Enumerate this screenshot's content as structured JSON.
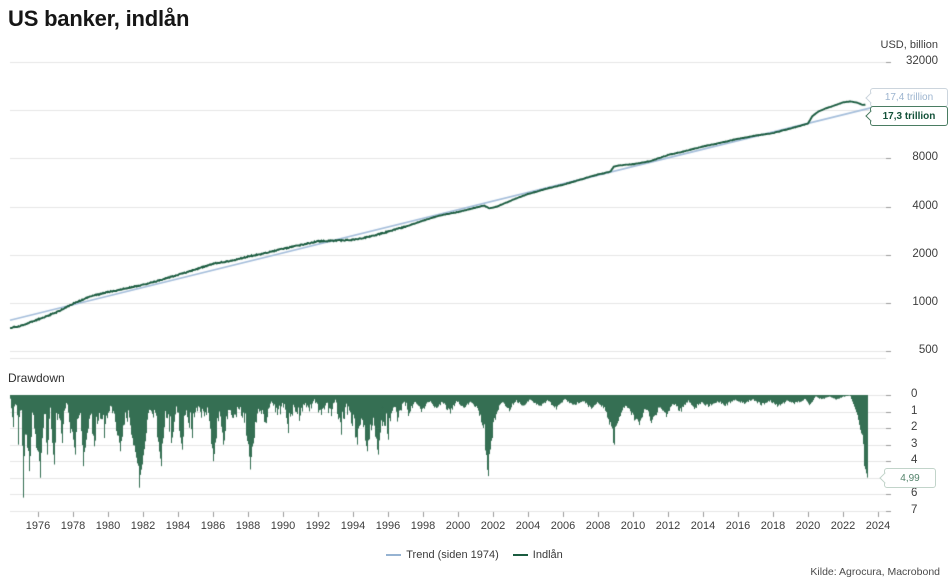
{
  "title": "US banker, indlån",
  "header": {
    "unit_label": "USD, billion"
  },
  "drawdown_label": "Drawdown",
  "source": "Kilde: Agrocura, Macrobond",
  "legend": [
    {
      "label": "Trend (siden 1974)",
      "color": "#96b3d2"
    },
    {
      "label": "Indlån",
      "color": "#1b5c40"
    }
  ],
  "colors": {
    "deposits_line": "#1b5c40",
    "trend_line": "#a5bedb",
    "drawdown_fill": "#356f53",
    "grid": "#e6e6e6",
    "tick": "#9b9b9b",
    "axis_text": "#3d3d3d"
  },
  "callouts": {
    "trend": {
      "text": "17,4 trillion",
      "text_color": "#9cb4cf",
      "border_color": "#ccd5dd"
    },
    "deposits": {
      "text": "17,3 trillion",
      "text_color": "#14523a",
      "border_color": "#4a7c62"
    },
    "drawdown": {
      "text": "4,99",
      "text_color": "#53836b",
      "border_color": "#c2d4ca"
    }
  },
  "chart_data": [
    {
      "type": "line",
      "title": "US banker, indlån",
      "ylabel": "USD, billion",
      "y_scale": "log",
      "ylim": [
        455,
        32000
      ],
      "yticks": [
        32000,
        8000,
        4000,
        2000,
        1000,
        500
      ],
      "ygrid": [
        32000,
        16000,
        8000,
        4000,
        2000,
        1000,
        500
      ],
      "xticks": [
        1976,
        1978,
        1980,
        1982,
        1984,
        1986,
        1988,
        1990,
        1992,
        1994,
        1996,
        1998,
        2000,
        2002,
        2004,
        2006,
        2008,
        2010,
        2012,
        2014,
        2016,
        2018,
        2020,
        2022,
        2024
      ],
      "legend_position": "bottom",
      "series": [
        {
          "name": "Indlån",
          "last_value_label": "17,3 trillion",
          "points": [
            [
              1974.4,
              700
            ],
            [
              1975,
              720
            ],
            [
              1976,
              790
            ],
            [
              1977,
              870
            ],
            [
              1978,
              990
            ],
            [
              1979,
              1100
            ],
            [
              1980,
              1170
            ],
            [
              1981,
              1230
            ],
            [
              1982,
              1300
            ],
            [
              1983,
              1390
            ],
            [
              1984,
              1500
            ],
            [
              1985,
              1620
            ],
            [
              1986,
              1760
            ],
            [
              1987,
              1830
            ],
            [
              1988,
              1950
            ],
            [
              1989,
              2050
            ],
            [
              1990,
              2180
            ],
            [
              1991,
              2300
            ],
            [
              1992,
              2430
            ],
            [
              1993,
              2450
            ],
            [
              1994,
              2480
            ],
            [
              1995,
              2600
            ],
            [
              1996,
              2790
            ],
            [
              1997,
              3000
            ],
            [
              1998,
              3270
            ],
            [
              1999,
              3530
            ],
            [
              2000,
              3700
            ],
            [
              2001,
              3940
            ],
            [
              2001.5,
              4060
            ],
            [
              2001.8,
              3890
            ],
            [
              2002.2,
              3990
            ],
            [
              2003,
              4350
            ],
            [
              2004,
              4800
            ],
            [
              2005,
              5150
            ],
            [
              2006,
              5480
            ],
            [
              2007,
              5900
            ],
            [
              2008,
              6350
            ],
            [
              2008.7,
              6600
            ],
            [
              2008.9,
              7100
            ],
            [
              2009.3,
              7250
            ],
            [
              2010,
              7350
            ],
            [
              2011,
              7700
            ],
            [
              2012,
              8400
            ],
            [
              2013,
              8900
            ],
            [
              2014,
              9500
            ],
            [
              2015,
              10000
            ],
            [
              2016,
              10600
            ],
            [
              2017,
              11100
            ],
            [
              2018,
              11500
            ],
            [
              2019,
              12300
            ],
            [
              2020,
              13200
            ],
            [
              2020.25,
              14700
            ],
            [
              2020.6,
              15700
            ],
            [
              2021,
              16400
            ],
            [
              2021.5,
              17100
            ],
            [
              2022,
              17900
            ],
            [
              2022.4,
              18150
            ],
            [
              2022.8,
              17850
            ],
            [
              2023,
              17500
            ],
            [
              2023.15,
              17250
            ],
            [
              2023.3,
              17300
            ]
          ]
        },
        {
          "name": "Trend (siden 1974)",
          "last_value_label": "17,4 trillion",
          "points": [
            [
              1974.4,
              780
            ],
            [
              2024.4,
              17400
            ]
          ]
        }
      ]
    },
    {
      "type": "area",
      "title": "Drawdown",
      "ylim": [
        0,
        7
      ],
      "inverted": true,
      "yticks": [
        0,
        1,
        2,
        3,
        4,
        5,
        6,
        7
      ],
      "series": [
        {
          "name": "Drawdown",
          "last_value_label": "4,99",
          "points": [
            [
              1974.4,
              0.4
            ],
            [
              1974.55,
              2.1
            ],
            [
              1974.7,
              0.8
            ],
            [
              1974.85,
              3.0
            ],
            [
              1975.0,
              1.2
            ],
            [
              1975.15,
              6.2
            ],
            [
              1975.3,
              2.4
            ],
            [
              1975.5,
              4.6
            ],
            [
              1975.7,
              1.4
            ],
            [
              1975.9,
              3.2
            ],
            [
              1976.1,
              5.0
            ],
            [
              1976.3,
              1.8
            ],
            [
              1976.5,
              3.6
            ],
            [
              1976.7,
              1.2
            ],
            [
              1976.9,
              4.2
            ],
            [
              1977.1,
              1.6
            ],
            [
              1977.35,
              2.9
            ],
            [
              1977.6,
              0.9
            ],
            [
              1977.85,
              2.3
            ],
            [
              1978.1,
              3.6
            ],
            [
              1978.35,
              1.1
            ],
            [
              1978.6,
              4.3
            ],
            [
              1978.9,
              1.8
            ],
            [
              1979.2,
              3.1
            ],
            [
              1979.5,
              1.1
            ],
            [
              1979.8,
              2.6
            ],
            [
              1980.1,
              0.9
            ],
            [
              1980.4,
              2.0
            ],
            [
              1980.7,
              3.4
            ],
            [
              1981.0,
              1.3
            ],
            [
              1981.3,
              2.4
            ],
            [
              1981.8,
              5.6
            ],
            [
              1982.1,
              2.8
            ],
            [
              1982.4,
              1.1
            ],
            [
              1982.7,
              2.1
            ],
            [
              1983.0,
              4.3
            ],
            [
              1983.3,
              1.5
            ],
            [
              1983.6,
              2.9
            ],
            [
              1983.9,
              1.0
            ],
            [
              1984.2,
              3.3
            ],
            [
              1984.5,
              1.7
            ],
            [
              1984.8,
              2.6
            ],
            [
              1985.1,
              0.9
            ],
            [
              1985.4,
              1.9
            ],
            [
              1985.7,
              1.1
            ],
            [
              1986.0,
              4.0
            ],
            [
              1986.3,
              1.9
            ],
            [
              1986.6,
              3.0
            ],
            [
              1986.9,
              1.2
            ],
            [
              1987.2,
              2.2
            ],
            [
              1987.5,
              1.0
            ],
            [
              1987.8,
              2.0
            ],
            [
              1988.1,
              4.5
            ],
            [
              1988.4,
              2.0
            ],
            [
              1988.7,
              1.1
            ],
            [
              1989.0,
              2.1
            ],
            [
              1989.35,
              0.7
            ],
            [
              1989.7,
              1.5
            ],
            [
              1990.0,
              0.8
            ],
            [
              1990.3,
              2.3
            ],
            [
              1990.6,
              1.0
            ],
            [
              1990.9,
              1.7
            ],
            [
              1991.2,
              0.6
            ],
            [
              1991.5,
              1.3
            ],
            [
              1991.8,
              0.5
            ],
            [
              1992.1,
              1.9
            ],
            [
              1992.4,
              0.8
            ],
            [
              1992.7,
              1.4
            ],
            [
              1993.0,
              0.6
            ],
            [
              1993.3,
              2.4
            ],
            [
              1993.6,
              1.1
            ],
            [
              1993.9,
              2.1
            ],
            [
              1994.2,
              3.0
            ],
            [
              1994.5,
              1.7
            ],
            [
              1994.8,
              3.4
            ],
            [
              1995.1,
              1.9
            ],
            [
              1995.4,
              3.6
            ],
            [
              1995.7,
              1.5
            ],
            [
              1996.0,
              2.7
            ],
            [
              1996.3,
              1.0
            ],
            [
              1996.6,
              1.9
            ],
            [
              1996.9,
              0.7
            ],
            [
              1997.2,
              1.5
            ],
            [
              1997.5,
              0.5
            ],
            [
              1997.9,
              1.1
            ],
            [
              1998.3,
              0.4
            ],
            [
              1998.7,
              0.9
            ],
            [
              1999.1,
              0.5
            ],
            [
              1999.5,
              1.2
            ],
            [
              1999.9,
              0.4
            ],
            [
              2000.3,
              0.9
            ],
            [
              2000.7,
              0.5
            ],
            [
              2001.1,
              1.0
            ],
            [
              2001.45,
              2.2
            ],
            [
              2001.7,
              4.9
            ],
            [
              2001.95,
              2.6
            ],
            [
              2002.2,
              1.1
            ],
            [
              2002.5,
              0.5
            ],
            [
              2002.9,
              1.0
            ],
            [
              2003.3,
              0.4
            ],
            [
              2003.7,
              0.8
            ],
            [
              2004.1,
              0.3
            ],
            [
              2004.6,
              0.8
            ],
            [
              2005.1,
              0.4
            ],
            [
              2005.6,
              0.9
            ],
            [
              2006.1,
              0.3
            ],
            [
              2006.6,
              0.7
            ],
            [
              2007.1,
              0.4
            ],
            [
              2007.6,
              0.9
            ],
            [
              2008.0,
              0.5
            ],
            [
              2008.4,
              1.0
            ],
            [
              2008.9,
              3.0
            ],
            [
              2009.2,
              1.4
            ],
            [
              2009.6,
              0.7
            ],
            [
              2010.0,
              1.6
            ],
            [
              2010.35,
              2.1
            ],
            [
              2010.7,
              1.0
            ],
            [
              2011.1,
              1.9
            ],
            [
              2011.5,
              0.8
            ],
            [
              2011.9,
              1.5
            ],
            [
              2012.3,
              0.6
            ],
            [
              2012.7,
              1.1
            ],
            [
              2013.1,
              0.4
            ],
            [
              2013.5,
              0.9
            ],
            [
              2013.9,
              0.5
            ],
            [
              2014.3,
              0.8
            ],
            [
              2014.8,
              0.4
            ],
            [
              2015.3,
              0.7
            ],
            [
              2015.8,
              0.3
            ],
            [
              2016.3,
              0.6
            ],
            [
              2016.8,
              0.3
            ],
            [
              2017.3,
              0.7
            ],
            [
              2017.8,
              0.4
            ],
            [
              2018.3,
              0.8
            ],
            [
              2018.8,
              0.4
            ],
            [
              2019.3,
              0.6
            ],
            [
              2019.8,
              0.3
            ],
            [
              2020.1,
              0.7
            ],
            [
              2020.4,
              0.1
            ],
            [
              2020.8,
              0.3
            ],
            [
              2021.2,
              0.1
            ],
            [
              2021.6,
              0.3
            ],
            [
              2022.0,
              0.1
            ],
            [
              2022.4,
              0.05
            ],
            [
              2022.6,
              0.6
            ],
            [
              2022.8,
              1.2
            ],
            [
              2023.0,
              2.3
            ],
            [
              2023.1,
              2.4
            ],
            [
              2023.2,
              4.3
            ],
            [
              2023.35,
              4.99
            ]
          ]
        }
      ]
    }
  ]
}
